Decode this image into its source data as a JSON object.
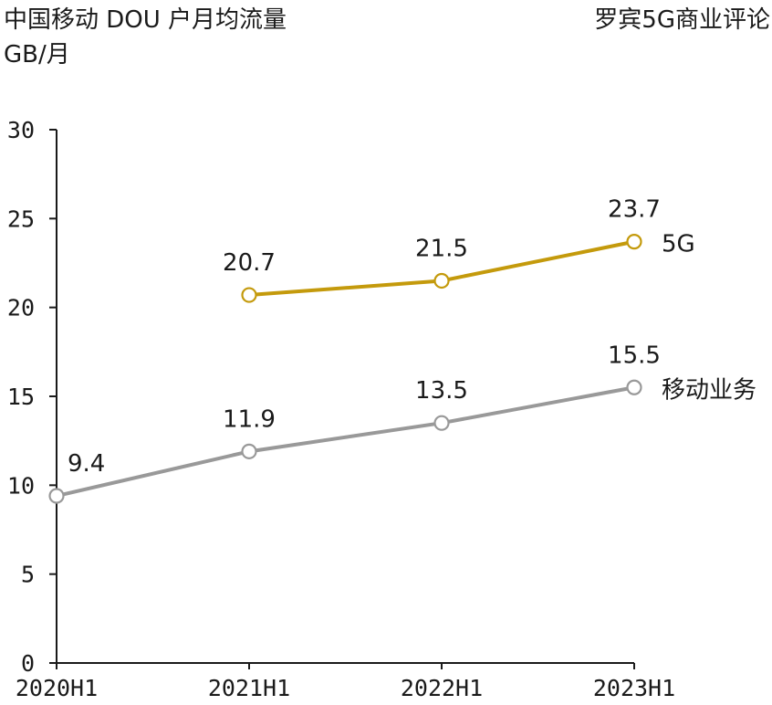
{
  "header": {
    "title": "中国移动 DOU 户月均流量",
    "unit": "GB/月",
    "source": "罗宾5G商业评论"
  },
  "chart_data": {
    "type": "line",
    "title": "中国移动 DOU 户月均流量",
    "ylabel": "GB/月",
    "xlabel": "",
    "categories": [
      "2020H1",
      "2021H1",
      "2022H1",
      "2023H1"
    ],
    "ylim": [
      0,
      30
    ],
    "yticks": [
      0,
      5,
      10,
      15,
      20,
      25,
      30
    ],
    "grid": false,
    "legend": "none",
    "series": [
      {
        "name": "5G",
        "values": [
          null,
          20.7,
          21.5,
          23.7
        ],
        "labels": [
          "",
          "20.7",
          "21.5",
          "23.7"
        ],
        "color": "#c49a0c"
      },
      {
        "name": "移动业务",
        "values": [
          9.4,
          11.9,
          13.5,
          15.5
        ],
        "labels": [
          "9.4",
          "11.9",
          "13.5",
          "15.5"
        ],
        "color": "#999999"
      }
    ]
  }
}
